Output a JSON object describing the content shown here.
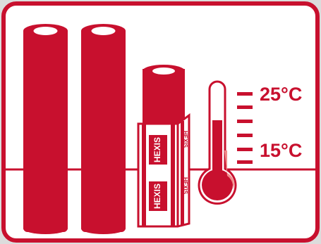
{
  "colors": {
    "brand_red": "#c8102e",
    "highlight_red": "#f08a8a",
    "background": "#ffffff",
    "outer_background": "#dcdcdc",
    "stroke": "#c8102e"
  },
  "illustration": {
    "rolls": [
      {
        "name": "roll-large-1",
        "icon": "roll-icon"
      },
      {
        "name": "roll-large-2",
        "icon": "roll-icon"
      },
      {
        "name": "roll-wrapped",
        "icon": "wrapped-roll-icon"
      }
    ],
    "brand_text": "HEXIS",
    "thermometer": {
      "icon": "thermometer-icon",
      "high_label": "25°C",
      "low_label": "15°C"
    }
  }
}
